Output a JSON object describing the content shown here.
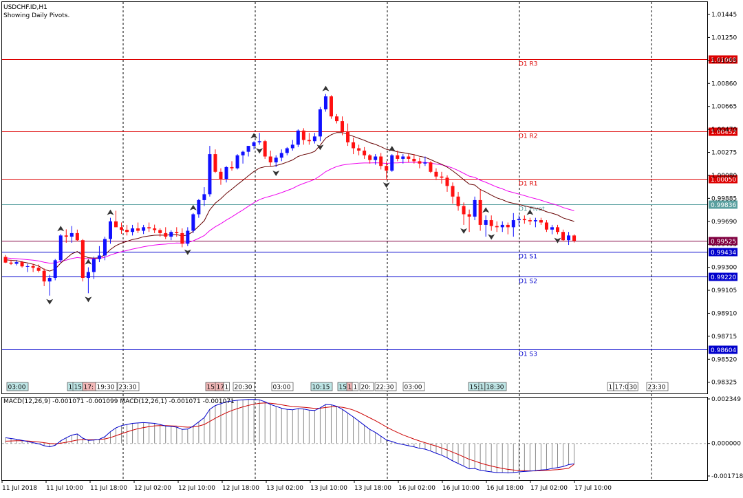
{
  "header": {
    "symbol_line": "USDCHF.ID,H1",
    "indicator_line": "Showing Daily Pivots."
  },
  "colors": {
    "background": "#ffffff",
    "up_candle": "#1010ff",
    "down_candle": "#ff1010",
    "resistance": "#dd0000",
    "support": "#0000cc",
    "pivot": "#5aa0a0",
    "bid": "#800040",
    "ma_fast": "#660000",
    "ma_slow": "#ee00ee",
    "macd_line": "#0000cc",
    "signal_line": "#cc0000",
    "histogram": "#888888",
    "grid": "#000000"
  },
  "price_axis": {
    "ticks": [
      "1.01445",
      "1.01250",
      "1.01055",
      "1.00860",
      "1.00665",
      "1.00470",
      "1.00275",
      "1.00080",
      "0.99885",
      "0.99690",
      "0.99495",
      "0.99300",
      "0.99105",
      "0.98910",
      "0.98715",
      "0.98520",
      "0.98325"
    ]
  },
  "pivots": [
    {
      "label": "D1 R3",
      "price": 1.01068,
      "tag": "1.01068",
      "kind": "resistance"
    },
    {
      "label": "D1 R2",
      "price": 1.00452,
      "tag": "1.00452",
      "kind": "resistance"
    },
    {
      "label": "D1 R1",
      "price": 1.0005,
      "tag": "1.00050",
      "kind": "resistance"
    },
    {
      "label": "D1 Pivot",
      "price": 0.99836,
      "tag": "0.99836",
      "kind": "pivot"
    },
    {
      "label": "D1 S1",
      "price": 0.99434,
      "tag": "0.99434",
      "kind": "support"
    },
    {
      "label": "D1 S2",
      "price": 0.9922,
      "tag": "0.99220",
      "kind": "support"
    },
    {
      "label": "D1 S3",
      "price": 0.98604,
      "tag": "0.98604",
      "kind": "support"
    }
  ],
  "bid": {
    "price": 0.99525,
    "tag": "0.99525"
  },
  "time_axis": [
    "11 Jul 2018",
    "11 Jul 10:00",
    "11 Jul 18:00",
    "12 Jul 02:00",
    "12 Jul 10:00",
    "12 Jul 18:00",
    "13 Jul 02:00",
    "13 Jul 10:00",
    "13 Jul 18:00",
    "16 Jul 02:00",
    "16 Jul 10:00",
    "16 Jul 18:00",
    "17 Jul 02:00",
    "17 Jul 10:00"
  ],
  "session_markers": [
    {
      "text": "03:00",
      "style": "teal"
    },
    {
      "text": "1",
      "style": "teal"
    },
    {
      "text": "15:",
      "style": "teal"
    },
    {
      "text": "17:",
      "style": "pink"
    },
    {
      "text": "19:30",
      "style": "white"
    },
    {
      "text": "23:30",
      "style": "white"
    },
    {
      "text": "15:",
      "style": "pink"
    },
    {
      "text": "17:",
      "style": "pink"
    },
    {
      "text": "1",
      "style": "white"
    },
    {
      "text": "20:30",
      "style": "white"
    },
    {
      "text": "03:00",
      "style": "white"
    },
    {
      "text": "10:15",
      "style": "teal"
    },
    {
      "text": "15:",
      "style": "teal"
    },
    {
      "text": "1",
      "style": "pink"
    },
    {
      "text": "1",
      "style": "white"
    },
    {
      "text": "20:",
      "style": "white"
    },
    {
      "text": "22:30",
      "style": "white"
    },
    {
      "text": "03:00",
      "style": "white"
    },
    {
      "text": "15:",
      "style": "teal"
    },
    {
      "text": "1",
      "style": "teal"
    },
    {
      "text": "18:30",
      "style": "teal"
    },
    {
      "text": "1",
      "style": "white"
    },
    {
      "text": "17:00",
      "style": "white"
    },
    {
      "text": "30",
      "style": "white"
    },
    {
      "text": "23:30",
      "style": "white"
    }
  ],
  "macd_panel": {
    "label": "MACD(12,26,9) -0.001071 -0.001099 MACD(12,26,1) -0.001071 -0.001071",
    "ticks": [
      "0.002349",
      "0.000000",
      "-0.001718"
    ]
  },
  "chart_data": {
    "type": "candlestick",
    "bars": [
      [
        0.99388,
        0.99404,
        0.99336,
        0.9934
      ],
      [
        0.9934,
        0.99364,
        0.9932,
        0.9933
      ],
      [
        0.9933,
        0.99362,
        0.99316,
        0.99344
      ],
      [
        0.99344,
        0.99354,
        0.99298,
        0.99308
      ],
      [
        0.99308,
        0.9933,
        0.9926,
        0.9931
      ],
      [
        0.9931,
        0.9933,
        0.9926,
        0.99296
      ],
      [
        0.99296,
        0.99324,
        0.99256,
        0.9927
      ],
      [
        0.9927,
        0.9929,
        0.9914,
        0.9918
      ],
      [
        0.9918,
        0.99236,
        0.9906,
        0.9921
      ],
      [
        0.9921,
        0.9937,
        0.9919,
        0.9936
      ],
      [
        0.9936,
        0.99582,
        0.9934,
        0.9957
      ],
      [
        0.9957,
        0.99622,
        0.99508,
        0.9956
      ],
      [
        0.9956,
        0.9965,
        0.99508,
        0.9959
      ],
      [
        0.9959,
        0.9962,
        0.9952,
        0.9953
      ],
      [
        0.9953,
        0.9954,
        0.9918,
        0.9921
      ],
      [
        0.9921,
        0.993,
        0.9908,
        0.9926
      ],
      [
        0.9926,
        0.9939,
        0.992,
        0.9937
      ],
      [
        0.9937,
        0.9948,
        0.99344,
        0.994
      ],
      [
        0.994,
        0.9956,
        0.9936,
        0.9954
      ],
      [
        0.9954,
        0.9972,
        0.995,
        0.9969
      ],
      [
        0.9969,
        0.9978,
        0.9964,
        0.9964
      ],
      [
        0.9964,
        0.9968,
        0.99584,
        0.99618
      ],
      [
        0.99618,
        0.9966,
        0.9957,
        0.996
      ],
      [
        0.996,
        0.9966,
        0.9957,
        0.9963
      ],
      [
        0.9963,
        0.9968,
        0.9959,
        0.9961
      ],
      [
        0.9961,
        0.9966,
        0.99582,
        0.9964
      ],
      [
        0.9964,
        0.9968,
        0.996,
        0.9963
      ],
      [
        0.9963,
        0.99662,
        0.9959,
        0.99616
      ],
      [
        0.99616,
        0.9963,
        0.9956,
        0.9959
      ],
      [
        0.9959,
        0.9964,
        0.9954,
        0.9956
      ],
      [
        0.9956,
        0.99614,
        0.9953,
        0.996
      ],
      [
        0.996,
        0.9964,
        0.9956,
        0.9959
      ],
      [
        0.9959,
        0.9963,
        0.9947,
        0.995
      ],
      [
        0.995,
        0.9964,
        0.9948,
        0.9961
      ],
      [
        0.9961,
        0.9976,
        0.9959,
        0.9975
      ],
      [
        0.9975,
        0.9988,
        0.9972,
        0.9987
      ],
      [
        0.9987,
        0.9998,
        0.9982,
        0.9992
      ],
      [
        0.9992,
        1.0033,
        0.999,
        1.0026
      ],
      [
        1.0026,
        1.003,
        1.001,
        1.0011
      ],
      [
        1.0011,
        1.0014,
        1.0,
        1.0005
      ],
      [
        1.0005,
        1.0016,
        1.0002,
        1.0015
      ],
      [
        1.0015,
        1.002,
        1.0012,
        1.0014
      ],
      [
        1.0014,
        1.0026,
        1.0013,
        1.0025
      ],
      [
        1.0025,
        1.0029,
        1.0018,
        1.0028
      ],
      [
        1.0028,
        1.0033,
        1.0024,
        1.0033
      ],
      [
        1.0033,
        1.0037,
        1.003,
        1.0036
      ],
      [
        1.0036,
        1.0044,
        1.0034,
        1.0037
      ],
      [
        1.0037,
        1.0038,
        1.0022,
        1.0024
      ],
      [
        1.0024,
        1.0029,
        1.0016,
        1.0019
      ],
      [
        1.0019,
        1.0025,
        1.0015,
        1.0023
      ],
      [
        1.0023,
        1.003,
        1.002,
        1.0027
      ],
      [
        1.0027,
        1.0032,
        1.0025,
        1.0031
      ],
      [
        1.0031,
        1.0038,
        1.0029,
        1.0034
      ],
      [
        1.0034,
        1.0047,
        1.0032,
        1.0046
      ],
      [
        1.0046,
        1.0048,
        1.0034,
        1.0038
      ],
      [
        1.0038,
        1.0044,
        1.0034,
        1.0037
      ],
      [
        1.0037,
        1.0044,
        1.0035,
        1.0041
      ],
      [
        1.0041,
        1.0066,
        1.0037,
        1.0064
      ],
      [
        1.0064,
        1.0077,
        1.0062,
        1.0075
      ],
      [
        1.0075,
        1.0076,
        1.0056,
        1.0058
      ],
      [
        1.0058,
        1.006,
        1.0052,
        1.0054
      ],
      [
        1.0054,
        1.0058,
        1.0042,
        1.0045
      ],
      [
        1.0045,
        1.0052,
        1.0033,
        1.0036
      ],
      [
        1.0036,
        1.004,
        1.0026,
        1.0031
      ],
      [
        1.0031,
        1.0034,
        1.0025,
        1.0029
      ],
      [
        1.0029,
        1.0032,
        1.0022,
        1.0025
      ],
      [
        1.0025,
        1.0026,
        1.0018,
        1.0021
      ],
      [
        1.0021,
        1.0026,
        1.0017,
        1.0024
      ],
      [
        1.0024,
        1.0027,
        1.0013,
        1.0016
      ],
      [
        1.0016,
        1.002,
        1.0005,
        1.0012
      ],
      [
        1.0012,
        1.0026,
        1.0011,
        1.0025
      ],
      [
        1.0025,
        1.0029,
        1.002,
        1.0022
      ],
      [
        1.0022,
        1.0026,
        1.0018,
        1.0024
      ],
      [
        1.0024,
        1.0026,
        1.0019,
        1.0022
      ],
      [
        1.0022,
        1.0026,
        1.0018,
        1.002
      ],
      [
        1.002,
        1.0023,
        1.0014,
        1.0018
      ],
      [
        1.0018,
        1.0024,
        1.0016,
        1.0019
      ],
      [
        1.0019,
        1.002,
        1.001,
        1.0011
      ],
      [
        1.0011,
        1.0014,
        1.0004,
        1.0007
      ],
      [
        1.0007,
        1.0011,
        1.0001,
        1.0006
      ],
      [
        1.0006,
        1.0008,
        0.9994,
        0.9999
      ],
      [
        0.9999,
        1.0002,
        0.9984,
        0.999
      ],
      [
        0.999,
        0.9994,
        0.9978,
        0.9982
      ],
      [
        0.9982,
        0.9985,
        0.9966,
        0.9975
      ],
      [
        0.9975,
        0.9979,
        0.996,
        0.9973
      ],
      [
        0.9973,
        0.999,
        0.997,
        0.9987
      ],
      [
        0.9987,
        0.9996,
        0.9961,
        0.9966
      ],
      [
        0.9966,
        0.9974,
        0.9956,
        0.997
      ],
      [
        0.997,
        0.9974,
        0.9961,
        0.9965
      ],
      [
        0.9965,
        0.9969,
        0.996,
        0.9964
      ],
      [
        0.9964,
        0.9969,
        0.996,
        0.9966
      ],
      [
        0.9966,
        0.9968,
        0.9958,
        0.9964
      ],
      [
        0.9964,
        0.9976,
        0.9956,
        0.997
      ],
      [
        0.997,
        0.9974,
        0.9965,
        0.9971
      ],
      [
        0.9971,
        0.9974,
        0.9967,
        0.997
      ],
      [
        0.997,
        0.9972,
        0.9966,
        0.9969
      ],
      [
        0.9969,
        0.9972,
        0.9964,
        0.997
      ],
      [
        0.997,
        0.9972,
        0.9966,
        0.9968
      ],
      [
        0.9968,
        0.997,
        0.996,
        0.9962
      ],
      [
        0.9962,
        0.9966,
        0.9958,
        0.9964
      ],
      [
        0.9964,
        0.9966,
        0.9958,
        0.996
      ],
      [
        0.996,
        0.9962,
        0.9952,
        0.9953
      ],
      [
        0.9953,
        0.996,
        0.9949,
        0.9957
      ],
      [
        0.9957,
        0.9958,
        0.9951,
        0.99525
      ]
    ],
    "ma_fast": [
      0.99364,
      0.99359,
      0.99356,
      0.99346,
      0.99337,
      0.99326,
      0.99311,
      0.99282,
      0.99268,
      0.99285,
      0.99336,
      0.99375,
      0.99414,
      0.99434,
      0.99401,
      0.99382,
      0.99378,
      0.99381,
      0.99406,
      0.99451,
      0.99484,
      0.99505,
      0.9952,
      0.99536,
      0.99545,
      0.99559,
      0.99566,
      0.99572,
      0.99574,
      0.99572,
      0.99577,
      0.99578,
      0.99566,
      0.99574,
      0.99605,
      0.99649,
      0.99695,
      0.99788,
      0.99844,
      0.99882,
      0.99927,
      0.99963,
      1.00002,
      1.00038,
      1.00077,
      1.00113,
      1.00142,
      1.00153,
      1.00154,
      1.00163,
      1.00176,
      1.00192,
      1.00211,
      1.0024,
      1.00256,
      1.00266,
      1.00283,
      1.00335,
      1.00396,
      1.00425,
      1.00443,
      1.00443,
      1.00428,
      1.00411,
      1.00394,
      1.00377,
      1.00357,
      1.00343,
      1.00323,
      1.003,
      1.00292,
      1.0028,
      1.00273,
      1.00264,
      1.00255,
      1.00242,
      1.00233,
      1.00214,
      1.00192,
      1.00174,
      1.0015,
      1.00118,
      1.00082,
      1.00043,
      1.00006,
      0.99998,
      0.9996,
      0.99938,
      0.99912,
      0.99889,
      0.99873,
      0.99853,
      0.99843,
      0.99833,
      0.99822,
      0.9981,
      0.99801,
      0.9979,
      0.99771,
      0.99759,
      0.99744,
      0.99719,
      0.99704,
      0.99689
    ],
    "ma_slow": [
      0.9938,
      0.99376,
      0.99373,
      0.99369,
      0.99365,
      0.9936,
      0.99354,
      0.99343,
      0.99335,
      0.99337,
      0.9935,
      0.99361,
      0.99374,
      0.99383,
      0.99377,
      0.99373,
      0.99373,
      0.99375,
      0.99385,
      0.99404,
      0.9942,
      0.99432,
      0.99443,
      0.99455,
      0.99464,
      0.99474,
      0.99482,
      0.99489,
      0.99494,
      0.99497,
      0.99502,
      0.99506,
      0.99505,
      0.9951,
      0.99525,
      0.99546,
      0.99569,
      0.99611,
      0.99644,
      0.9967,
      0.99701,
      0.99728,
      0.99758,
      0.99787,
      0.99818,
      0.99848,
      0.99874,
      0.99891,
      0.99904,
      0.99918,
      0.99934,
      0.99951,
      0.99969,
      0.99993,
      1.00012,
      1.00028,
      1.00046,
      1.00077,
      1.00112,
      1.00135,
      1.00155,
      1.00167,
      1.00174,
      1.00179,
      1.00183,
      1.00185,
      1.00185,
      1.00187,
      1.00185,
      1.00181,
      1.00185,
      1.00186,
      1.00189,
      1.0019,
      1.00191,
      1.0019,
      1.0019,
      1.00184,
      1.00176,
      1.00169,
      1.00158,
      1.00142,
      1.00121,
      1.00097,
      1.00073,
      1.00063,
      1.00039,
      1.00021,
      1.00001,
      0.99981,
      0.99965,
      0.99946,
      0.99934,
      0.99921,
      0.99908,
      0.99894,
      0.99882,
      0.99869,
      0.99853,
      0.9984,
      0.99826,
      0.99807,
      0.99793,
      0.9978
    ],
    "macd": [
      0.0003,
      0.00026,
      0.00022,
      0.00016,
      0.0001,
      4e-05,
      -2e-05,
      -0.00012,
      -0.00018,
      -0.0001,
      0.00014,
      0.0003,
      0.00044,
      0.0005,
      0.00028,
      0.00016,
      0.00018,
      0.00022,
      0.00036,
      0.00062,
      0.00082,
      0.00094,
      0.001,
      0.00106,
      0.00108,
      0.0011,
      0.00108,
      0.00106,
      0.001,
      0.00092,
      0.0009,
      0.00086,
      0.00074,
      0.00076,
      0.00092,
      0.00114,
      0.00136,
      0.0018,
      0.002,
      0.0021,
      0.0022,
      0.00224,
      0.00228,
      0.0023,
      0.00232,
      0.00232,
      0.0023,
      0.0022,
      0.00206,
      0.00196,
      0.00186,
      0.0018,
      0.00178,
      0.00184,
      0.00182,
      0.00176,
      0.00174,
      0.00188,
      0.00206,
      0.00204,
      0.00196,
      0.0018,
      0.0016,
      0.0014,
      0.00118,
      0.00096,
      0.00074,
      0.00058,
      0.00038,
      0.00018,
      0.0001,
      0.0,
      -6e-05,
      -0.00012,
      -0.00018,
      -0.00026,
      -0.0003,
      -0.0004,
      -0.00052,
      -0.00062,
      -0.00076,
      -0.00092,
      -0.00106,
      -0.0012,
      -0.00134,
      -0.00132,
      -0.00142,
      -0.00146,
      -0.0015,
      -0.00154,
      -0.00154,
      -0.00156,
      -0.00154,
      -0.0015,
      -0.00148,
      -0.00146,
      -0.00144,
      -0.0014,
      -0.00138,
      -0.00132,
      -0.00128,
      -0.00122,
      -0.00112,
      -0.00107
    ],
    "signal": [
      0.00012,
      0.00013,
      0.00014,
      0.00014,
      0.00013,
      0.00011,
      8e-05,
      4e-05,
      0.0,
      -2e-05,
      1e-05,
      6e-05,
      0.00012,
      0.00018,
      0.0002,
      0.0002,
      0.0002,
      0.00021,
      0.00024,
      0.00031,
      0.00041,
      0.00051,
      0.00061,
      0.0007,
      0.00078,
      0.00084,
      0.00089,
      0.00093,
      0.00094,
      0.00094,
      0.00093,
      0.00092,
      0.00088,
      0.00086,
      0.00087,
      0.00092,
      0.001,
      0.00116,
      0.00133,
      0.00148,
      0.00162,
      0.00174,
      0.00184,
      0.00193,
      0.00201,
      0.00207,
      0.00212,
      0.00214,
      0.00212,
      0.00209,
      0.00204,
      0.00199,
      0.00195,
      0.00193,
      0.00191,
      0.00188,
      0.00185,
      0.00186,
      0.0019,
      0.00193,
      0.00194,
      0.00191,
      0.00185,
      0.00176,
      0.00164,
      0.0015,
      0.00135,
      0.0012,
      0.00104,
      0.00087,
      0.00072,
      0.00058,
      0.00045,
      0.00034,
      0.00023,
      0.00013,
      4e-05,
      -5e-05,
      -0.00014,
      -0.00024,
      -0.00034,
      -0.00046,
      -0.00058,
      -0.00071,
      -0.00084,
      -0.00093,
      -0.00103,
      -0.00112,
      -0.00119,
      -0.00126,
      -0.00132,
      -0.00137,
      -0.0014,
      -0.00143,
      -0.00144,
      -0.00145,
      -0.00145,
      -0.00144,
      -0.00143,
      -0.0014,
      -0.00138,
      -0.00135,
      -0.00131,
      -0.0011
    ],
    "fractals_up": [
      10,
      15,
      19,
      34,
      45,
      58,
      70,
      87,
      95
    ],
    "fractals_down": [
      8,
      15,
      33,
      46,
      49,
      57,
      69,
      83,
      88,
      100
    ],
    "ylim": [
      0.9823,
      1.0155
    ],
    "macd_ylim": [
      -0.001718,
      0.002349
    ]
  }
}
